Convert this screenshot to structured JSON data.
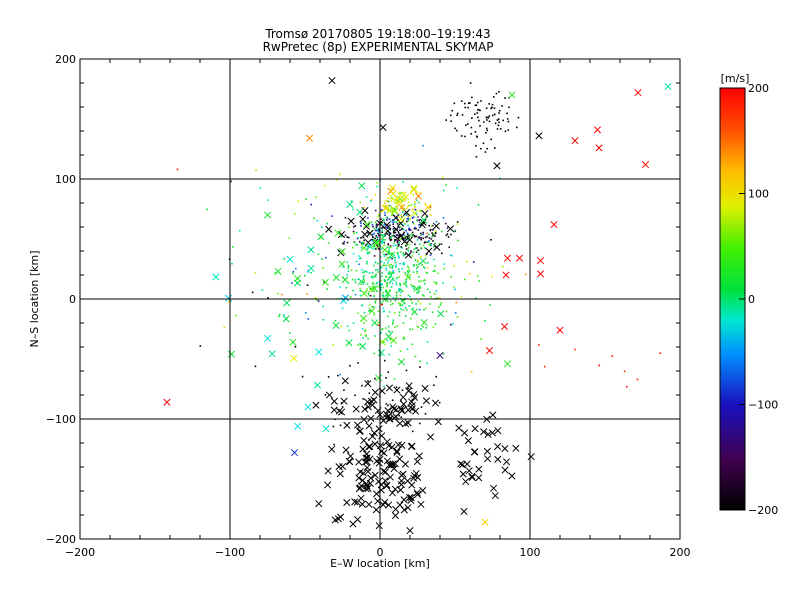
{
  "chart_data": {
    "type": "scatter",
    "title_line1": "Tromsø 20170805 19:18:00–19:19:43",
    "title_line2": "RwPretec (8p) EXPERIMENTAL SKYMAP",
    "xlabel": "E–W location [km]",
    "ylabel": "N–S location [km]",
    "xlim": [
      -200,
      200
    ],
    "ylim": [
      -200,
      200
    ],
    "x_ticks": [
      -200,
      -100,
      0,
      100,
      200
    ],
    "y_ticks": [
      -200,
      -100,
      0,
      100,
      200
    ],
    "x_tick_labels": [
      "−200",
      "−100",
      "0",
      "100",
      "200"
    ],
    "y_tick_labels": [
      "−200",
      "−100",
      "0",
      "100",
      "200"
    ],
    "grid": true,
    "colorbar": {
      "label": "[m/s]",
      "range": [
        -200,
        200
      ],
      "ticks": [
        200,
        100,
        0,
        -100,
        -200
      ],
      "tick_labels": [
        "200",
        "100",
        "0",
        "−100",
        "−200"
      ],
      "colormap": "rainbow (black→purple→blue→cyan→green→yellow→red)"
    },
    "marker_types": [
      "dot",
      "x"
    ],
    "clusters": [
      {
        "name": "north-east-black",
        "marker": "dot",
        "cx": 68,
        "cy": 150,
        "sx": 12,
        "sy": 12,
        "n": 90,
        "vel": -200,
        "vel_sd": 0
      },
      {
        "name": "center-black-dense",
        "marker": "dot",
        "cx": 15,
        "cy": 52,
        "sx": 18,
        "sy": 7,
        "n": 170,
        "vel": -190,
        "vel_sd": 15
      },
      {
        "name": "center-blue",
        "marker": "dot",
        "cx": 8,
        "cy": 63,
        "sx": 14,
        "sy": 6,
        "n": 60,
        "vel": -110,
        "vel_sd": 15
      },
      {
        "name": "center-yellow-green-top",
        "marker": "dot",
        "cx": 10,
        "cy": 80,
        "sx": 10,
        "sy": 6,
        "n": 70,
        "vel": 80,
        "vel_sd": 25
      },
      {
        "name": "center-green-column",
        "marker": "dot",
        "cx": 10,
        "cy": 15,
        "sx": 16,
        "sy": 28,
        "n": 380,
        "vel": 10,
        "vel_sd": 20
      },
      {
        "name": "center-cyan-column",
        "marker": "dot",
        "cx": 5,
        "cy": 25,
        "sx": 12,
        "sy": 25,
        "n": 140,
        "vel": -35,
        "vel_sd": 15
      },
      {
        "name": "west-mixed-sparse",
        "marker": "dot",
        "cx": -40,
        "cy": 30,
        "sx": 25,
        "sy": 35,
        "n": 90,
        "vel": 0,
        "vel_sd": 70
      },
      {
        "name": "east-mixed-sparse",
        "marker": "dot",
        "cx": 40,
        "cy": 30,
        "sx": 20,
        "sy": 35,
        "n": 60,
        "vel": 0,
        "vel_sd": 80
      },
      {
        "name": "south-black-dots",
        "marker": "dot",
        "cx": 5,
        "cy": -85,
        "sx": 22,
        "sy": 15,
        "n": 50,
        "vel": -200,
        "vel_sd": 0
      },
      {
        "name": "scattered-black-dots",
        "marker": "dot",
        "cx": -60,
        "cy": -20,
        "sx": 40,
        "sy": 60,
        "n": 12,
        "vel": -200,
        "vel_sd": 0
      },
      {
        "name": "east-red-dots",
        "marker": "dot",
        "cx": 150,
        "cy": -50,
        "sx": 25,
        "sy": 20,
        "n": 9,
        "vel": 195,
        "vel_sd": 5
      },
      {
        "name": "south-black-x-main",
        "marker": "x",
        "cx": 0,
        "cy": -140,
        "sx": 16,
        "sy": 28,
        "n": 140,
        "vel": -200,
        "vel_sd": 0
      },
      {
        "name": "south-black-x-upper",
        "marker": "x",
        "cx": 5,
        "cy": -90,
        "sx": 20,
        "sy": 10,
        "n": 45,
        "vel": -200,
        "vel_sd": 0
      },
      {
        "name": "south-east-black-x",
        "marker": "x",
        "cx": 68,
        "cy": -130,
        "sx": 12,
        "sy": 18,
        "n": 35,
        "vel": -200,
        "vel_sd": 0
      },
      {
        "name": "center-black-x",
        "marker": "x",
        "cx": 10,
        "cy": 55,
        "sx": 18,
        "sy": 10,
        "n": 30,
        "vel": -200,
        "vel_sd": 0
      },
      {
        "name": "center-yellow-x",
        "marker": "x",
        "cx": 12,
        "cy": 80,
        "sx": 8,
        "sy": 6,
        "n": 20,
        "vel": 100,
        "vel_sd": 30
      },
      {
        "name": "center-green-x",
        "marker": "x",
        "cx": -5,
        "cy": 10,
        "sx": 25,
        "sy": 30,
        "n": 45,
        "vel": 5,
        "vel_sd": 25
      },
      {
        "name": "west-cyan-x",
        "marker": "x",
        "cx": -50,
        "cy": -20,
        "sx": 20,
        "sy": 50,
        "n": 12,
        "vel": -45,
        "vel_sd": 20
      }
    ],
    "points": [
      {
        "x": -32,
        "y": 182,
        "vel": -200,
        "marker": "x"
      },
      {
        "x": 2,
        "y": 143,
        "vel": -200,
        "marker": "x"
      },
      {
        "x": -47,
        "y": 134,
        "vel": 150,
        "marker": "x"
      },
      {
        "x": -135,
        "y": 108,
        "vel": 200,
        "marker": "dot"
      },
      {
        "x": 88,
        "y": 170,
        "vel": 20,
        "marker": "x"
      },
      {
        "x": 172,
        "y": 172,
        "vel": 200,
        "marker": "x"
      },
      {
        "x": 192,
        "y": 177,
        "vel": -30,
        "marker": "x"
      },
      {
        "x": 145,
        "y": 141,
        "vel": 200,
        "marker": "x"
      },
      {
        "x": 130,
        "y": 132,
        "vel": 200,
        "marker": "x"
      },
      {
        "x": 146,
        "y": 126,
        "vel": 200,
        "marker": "x"
      },
      {
        "x": 177,
        "y": 112,
        "vel": 200,
        "marker": "x"
      },
      {
        "x": 106,
        "y": 136,
        "vel": -200,
        "marker": "x"
      },
      {
        "x": 78,
        "y": 111,
        "vel": -200,
        "marker": "x"
      },
      {
        "x": 116,
        "y": 62,
        "vel": 200,
        "marker": "x"
      },
      {
        "x": 85,
        "y": 34,
        "vel": 200,
        "marker": "x"
      },
      {
        "x": 93,
        "y": 34,
        "vel": 200,
        "marker": "x"
      },
      {
        "x": 107,
        "y": 32,
        "vel": 200,
        "marker": "x"
      },
      {
        "x": 107,
        "y": 21,
        "vel": 200,
        "marker": "x"
      },
      {
        "x": 84,
        "y": 20,
        "vel": 200,
        "marker": "x"
      },
      {
        "x": 120,
        "y": -26,
        "vel": 200,
        "marker": "x"
      },
      {
        "x": 83,
        "y": -23,
        "vel": 200,
        "marker": "x"
      },
      {
        "x": 73,
        "y": -43,
        "vel": 200,
        "marker": "x"
      },
      {
        "x": 85,
        "y": -54,
        "vel": 20,
        "marker": "x"
      },
      {
        "x": 40,
        "y": -47,
        "vel": -150,
        "marker": "x"
      },
      {
        "x": -142,
        "y": -86,
        "vel": 200,
        "marker": "x"
      },
      {
        "x": -99,
        "y": -46,
        "vel": 10,
        "marker": "x"
      },
      {
        "x": -57,
        "y": -128,
        "vel": -110,
        "marker": "x"
      },
      {
        "x": -36,
        "y": -108,
        "vel": -40,
        "marker": "x"
      },
      {
        "x": -48,
        "y": -90,
        "vel": -50,
        "marker": "x"
      },
      {
        "x": -58,
        "y": -36,
        "vel": 20,
        "marker": "x"
      },
      {
        "x": 70,
        "y": -186,
        "vel": 110,
        "marker": "x"
      },
      {
        "x": 56,
        "y": -177,
        "vel": -200,
        "marker": "x"
      },
      {
        "x": 20,
        "y": -193,
        "vel": -200,
        "marker": "x"
      },
      {
        "x": -75,
        "y": 70,
        "vel": 10,
        "marker": "x"
      },
      {
        "x": -60,
        "y": 33,
        "vel": -40,
        "marker": "x"
      },
      {
        "x": -68,
        "y": 23,
        "vel": 10,
        "marker": "x"
      },
      {
        "x": -55,
        "y": 17,
        "vel": 20,
        "marker": "x"
      }
    ]
  }
}
